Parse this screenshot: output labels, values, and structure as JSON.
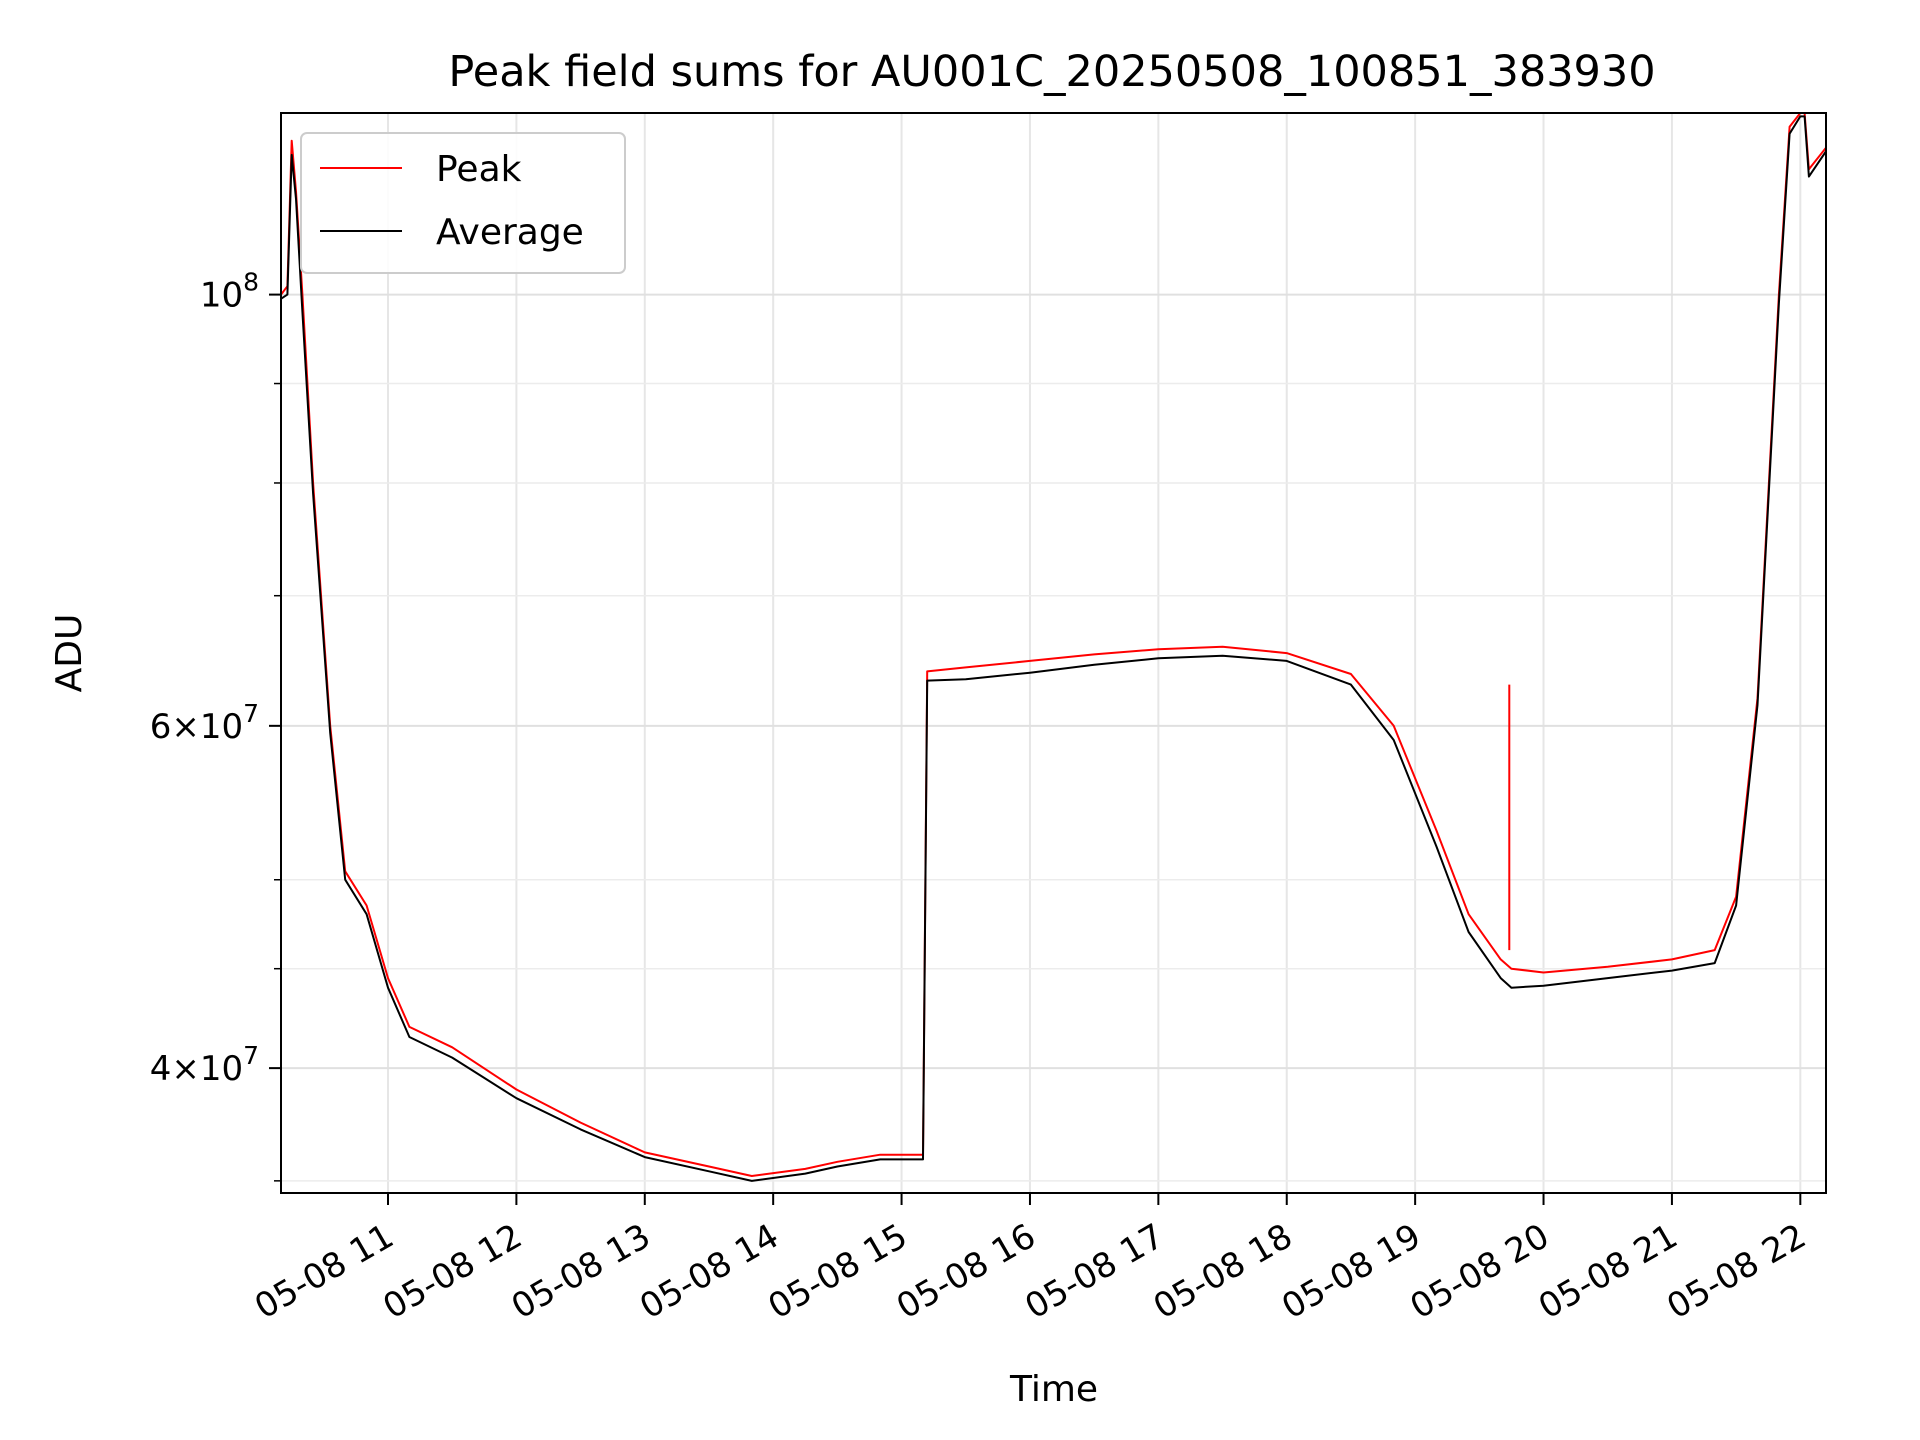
{
  "chart_data": {
    "type": "line",
    "title": "Peak field sums for AU001C_20250508_100851_383930",
    "xlabel": "Time",
    "ylabel": "ADU",
    "y_scale": "log",
    "grid": true,
    "legend_position": "top-left",
    "x_range": [
      "05-08 10:10",
      "05-08 22:12"
    ],
    "y_range": [
      34500000,
      124000000
    ],
    "x_ticks": [
      "05-08 11",
      "05-08 12",
      "05-08 13",
      "05-08 14",
      "05-08 15",
      "05-08 16",
      "05-08 17",
      "05-08 18",
      "05-08 19",
      "05-08 20",
      "05-08 21",
      "05-08 22"
    ],
    "y_ticks": [
      {
        "value": 100000000,
        "base": "10",
        "exp": "8"
      },
      {
        "value": 60000000,
        "base": "6×10",
        "exp": "7"
      },
      {
        "value": 40000000,
        "base": "4×10",
        "exp": "7"
      }
    ],
    "series": [
      {
        "name": "Peak",
        "color": "#ff0000",
        "points": [
          [
            "05-08 10:10",
            100000000
          ],
          [
            "05-08 10:13",
            101000000
          ],
          [
            "05-08 10:15",
            120000000
          ],
          [
            "05-08 10:17",
            113000000
          ],
          [
            "05-08 10:20",
            100000000
          ],
          [
            "05-08 10:25",
            80000000
          ],
          [
            "05-08 10:33",
            60000000
          ],
          [
            "05-08 10:40",
            50500000
          ],
          [
            "05-08 10:50",
            48500000
          ],
          [
            "05-08 11:00",
            44500000
          ],
          [
            "05-08 11:10",
            42000000
          ],
          [
            "05-08 11:30",
            41000000
          ],
          [
            "05-08 12:00",
            39000000
          ],
          [
            "05-08 12:30",
            37500000
          ],
          [
            "05-08 13:00",
            36200000
          ],
          [
            "05-08 13:30",
            35600000
          ],
          [
            "05-08 13:50",
            35200000
          ],
          [
            "05-08 14:15",
            35500000
          ],
          [
            "05-08 14:30",
            35800000
          ],
          [
            "05-08 14:50",
            36100000
          ],
          [
            "05-08 15:10",
            36100000
          ],
          [
            "05-08 15:12",
            64000000
          ],
          [
            "05-08 15:30",
            64300000
          ],
          [
            "05-08 16:00",
            64800000
          ],
          [
            "05-08 16:30",
            65300000
          ],
          [
            "05-08 17:00",
            65700000
          ],
          [
            "05-08 17:30",
            65900000
          ],
          [
            "05-08 18:00",
            65400000
          ],
          [
            "05-08 18:30",
            63800000
          ],
          [
            "05-08 18:50",
            60000000
          ],
          [
            "05-08 19:10",
            53000000
          ],
          [
            "05-08 19:25",
            48000000
          ],
          [
            "05-08 19:40",
            45500000
          ],
          [
            "05-08 19:45",
            45000000
          ],
          [
            "05-08 20:00",
            44800000
          ],
          [
            "05-08 20:30",
            45100000
          ],
          [
            "05-08 21:00",
            45500000
          ],
          [
            "05-08 21:20",
            46000000
          ],
          [
            "05-08 21:30",
            49000000
          ],
          [
            "05-08 21:40",
            62000000
          ],
          [
            "05-08 21:50",
            100000000
          ],
          [
            "05-08 21:55",
            122000000
          ],
          [
            "05-08 22:00",
            124000000
          ],
          [
            "05-08 22:02",
            124000000
          ],
          [
            "05-08 22:04",
            116000000
          ],
          [
            "05-08 22:12",
            119000000
          ]
        ]
      },
      {
        "name": "Average",
        "color": "#000000",
        "points": [
          [
            "05-08 10:10",
            99500000
          ],
          [
            "05-08 10:13",
            100000000
          ],
          [
            "05-08 10:15",
            118000000
          ],
          [
            "05-08 10:17",
            112000000
          ],
          [
            "05-08 10:20",
            98000000
          ],
          [
            "05-08 10:25",
            79000000
          ],
          [
            "05-08 10:33",
            59500000
          ],
          [
            "05-08 10:40",
            50000000
          ],
          [
            "05-08 10:50",
            48000000
          ],
          [
            "05-08 11:00",
            44000000
          ],
          [
            "05-08 11:10",
            41500000
          ],
          [
            "05-08 11:30",
            40500000
          ],
          [
            "05-08 12:00",
            38600000
          ],
          [
            "05-08 12:30",
            37200000
          ],
          [
            "05-08 13:00",
            36000000
          ],
          [
            "05-08 13:30",
            35400000
          ],
          [
            "05-08 13:50",
            35000000
          ],
          [
            "05-08 14:15",
            35300000
          ],
          [
            "05-08 14:30",
            35600000
          ],
          [
            "05-08 14:50",
            35900000
          ],
          [
            "05-08 15:10",
            35900000
          ],
          [
            "05-08 15:12",
            63300000
          ],
          [
            "05-08 15:30",
            63400000
          ],
          [
            "05-08 16:00",
            63900000
          ],
          [
            "05-08 16:30",
            64500000
          ],
          [
            "05-08 17:00",
            65000000
          ],
          [
            "05-08 17:30",
            65200000
          ],
          [
            "05-08 18:00",
            64800000
          ],
          [
            "05-08 18:30",
            63000000
          ],
          [
            "05-08 18:50",
            59000000
          ],
          [
            "05-08 19:10",
            52000000
          ],
          [
            "05-08 19:25",
            47000000
          ],
          [
            "05-08 19:40",
            44500000
          ],
          [
            "05-08 19:45",
            44000000
          ],
          [
            "05-08 20:00",
            44100000
          ],
          [
            "05-08 20:30",
            44500000
          ],
          [
            "05-08 21:00",
            44900000
          ],
          [
            "05-08 21:20",
            45300000
          ],
          [
            "05-08 21:30",
            48500000
          ],
          [
            "05-08 21:40",
            61500000
          ],
          [
            "05-08 21:50",
            99000000
          ],
          [
            "05-08 21:55",
            121000000
          ],
          [
            "05-08 22:00",
            123500000
          ],
          [
            "05-08 22:02",
            123500000
          ],
          [
            "05-08 22:04",
            115000000
          ],
          [
            "05-08 22:12",
            118500000
          ]
        ]
      }
    ],
    "annotations": [
      {
        "series": "Peak",
        "type": "spike",
        "x": "05-08 19:44",
        "y": 63000000
      }
    ]
  }
}
